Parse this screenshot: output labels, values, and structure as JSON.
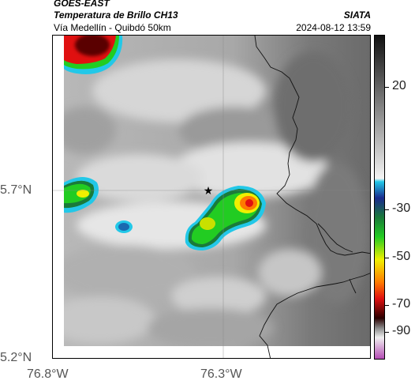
{
  "header": {
    "satellite": "GOES-EAST",
    "product": "Temperatura de Brillo CH13",
    "region": "Vía Medellín - Quibdó 50km",
    "organization": "SIATA",
    "timestamp": "2024-08-12 13:59"
  },
  "map": {
    "lat_labels": [
      "5.7°N",
      "5.2°N"
    ],
    "lon_labels": [
      "76.8°W",
      "76.3°W"
    ],
    "marker": "star-icon"
  },
  "colorbar": {
    "tick_labels": [
      "20",
      "-30",
      "-50",
      "-70",
      "-90"
    ],
    "colors": {
      "cloud_warm": "#6a6a6a",
      "cloud_cold": "#e0e0e0",
      "cyan": "#22c8e8",
      "blue": "#1a2a8e",
      "green": "#22cc22",
      "yellow": "#f0f000",
      "orange": "#ff7a00",
      "red": "#e01010",
      "dark": "#2a0000",
      "magenta": "#b040b0"
    }
  }
}
